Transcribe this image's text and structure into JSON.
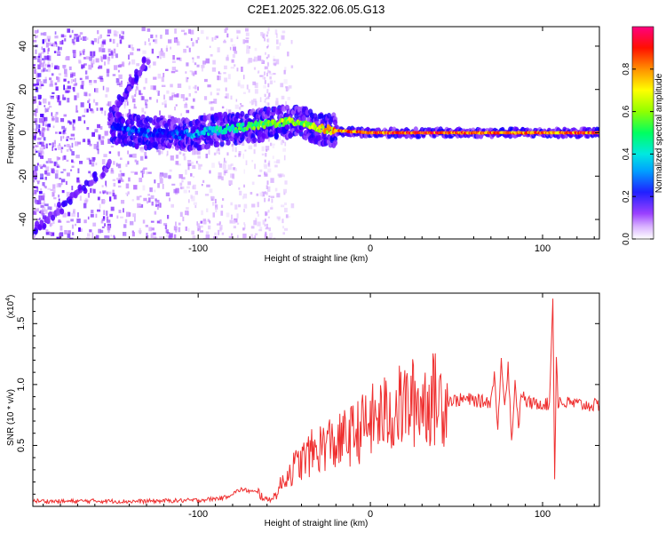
{
  "page_title": "C2E1.2025.322.06.05.G13",
  "chart_data": [
    {
      "type": "heatmap",
      "title": "C2E1.2025.322.06.05.G13",
      "xlabel": "Height of straight line (km)",
      "ylabel": "Frequency (Hz)",
      "xlim": [
        -196,
        133
      ],
      "ylim": [
        -49,
        49
      ],
      "x_ticks": [
        -100,
        0,
        100
      ],
      "x_tick_labels": [
        "-100",
        "0",
        "100"
      ],
      "y_ticks": [
        -40,
        -20,
        0,
        20,
        40
      ],
      "y_tick_labels": [
        "-40",
        "-20",
        "0",
        "20",
        "40"
      ],
      "colorbar": {
        "label": "Normalized spectral amplitude",
        "range": [
          0,
          1
        ],
        "ticks": [
          0.0,
          0.2,
          0.4,
          0.6,
          0.8
        ],
        "tick_labels": [
          "0.0",
          "0.2",
          "0.4",
          "0.6",
          "0.8"
        ],
        "colors": [
          "#ffffff",
          "#c080ff",
          "#6000ff",
          "#0000ff",
          "#00c8ff",
          "#00ff80",
          "#80ff00",
          "#ffff00",
          "#ff8000",
          "#ff0000",
          "#ff0080"
        ]
      },
      "ridge_points": [
        {
          "x": -150,
          "y": 3,
          "amp": 0.3
        },
        {
          "x": -140,
          "y": 1,
          "amp": 0.35
        },
        {
          "x": -130,
          "y": 0,
          "amp": 0.35
        },
        {
          "x": -120,
          "y": 0,
          "amp": 0.3
        },
        {
          "x": -110,
          "y": -1,
          "amp": 0.35
        },
        {
          "x": -100,
          "y": 0,
          "amp": 0.4
        },
        {
          "x": -90,
          "y": 1,
          "amp": 0.45
        },
        {
          "x": -80,
          "y": 2,
          "amp": 0.5
        },
        {
          "x": -70,
          "y": 3,
          "amp": 0.55
        },
        {
          "x": -60,
          "y": 4,
          "amp": 0.6
        },
        {
          "x": -50,
          "y": 5,
          "amp": 0.65
        },
        {
          "x": -40,
          "y": 5,
          "amp": 0.6
        },
        {
          "x": -30,
          "y": 2,
          "amp": 0.7
        },
        {
          "x": -20,
          "y": 1,
          "amp": 0.8
        },
        {
          "x": 0,
          "y": 0,
          "amp": 0.9
        },
        {
          "x": 40,
          "y": 0,
          "amp": 0.9
        },
        {
          "x": 73,
          "y": 0,
          "amp": 0.85
        },
        {
          "x": 83,
          "y": 0,
          "amp": 0.85
        },
        {
          "x": 106,
          "y": 0,
          "amp": 0.85
        },
        {
          "x": 133,
          "y": 0,
          "amp": 0.9
        }
      ],
      "diagonal_branches": [
        {
          "from": [
            -196,
            -46
          ],
          "to": [
            -150,
            -14
          ]
        },
        {
          "from": [
            -152,
            6
          ],
          "to": [
            -130,
            33
          ]
        }
      ]
    },
    {
      "type": "line",
      "xlabel": "Height of straight line (km)",
      "ylabel": "SNR (10 * v/v)",
      "y_multiplier_label": "(x10",
      "y_multiplier_exp": "4",
      "y_multiplier_close": ")",
      "xlim": [
        -196,
        133
      ],
      "ylim": [
        0,
        17500
      ],
      "x_ticks": [
        -100,
        0,
        100
      ],
      "x_tick_labels": [
        "-100",
        "0",
        "100"
      ],
      "y_ticks": [
        5000,
        10000,
        15000
      ],
      "y_tick_labels": [
        "0.5",
        "1.0",
        "1.5"
      ],
      "series": [
        {
          "name": "SNR",
          "color": "#ef3030",
          "x": [
            -196,
            -180,
            -160,
            -140,
            -120,
            -100,
            -85,
            -75,
            -65,
            -60,
            -55,
            -50,
            -45,
            -40,
            -35,
            -30,
            -25,
            -20,
            -15,
            -10,
            -5,
            0,
            5,
            10,
            15,
            20,
            25,
            30,
            35,
            40,
            45,
            50,
            55,
            60,
            65,
            70,
            72,
            74,
            76,
            78,
            80,
            82,
            84,
            86,
            88,
            90,
            95,
            100,
            104,
            106,
            107,
            108,
            109,
            110,
            112,
            115,
            120,
            125,
            133
          ],
          "y": [
            450,
            400,
            450,
            400,
            450,
            500,
            700,
            1400,
            1100,
            500,
            900,
            2300,
            3100,
            3700,
            4300,
            4700,
            5300,
            5000,
            5600,
            5900,
            6400,
            6900,
            7300,
            7600,
            7900,
            8300,
            8500,
            8600,
            8800,
            8800,
            8700,
            8700,
            8800,
            8700,
            8600,
            8600,
            11000,
            6000,
            12500,
            8200,
            11800,
            5100,
            10400,
            6600,
            9400,
            8600,
            8400,
            8500,
            8300,
            17500,
            2000,
            12500,
            8500,
            8700,
            8400,
            8500,
            8400,
            8300,
            8300
          ]
        }
      ]
    }
  ]
}
